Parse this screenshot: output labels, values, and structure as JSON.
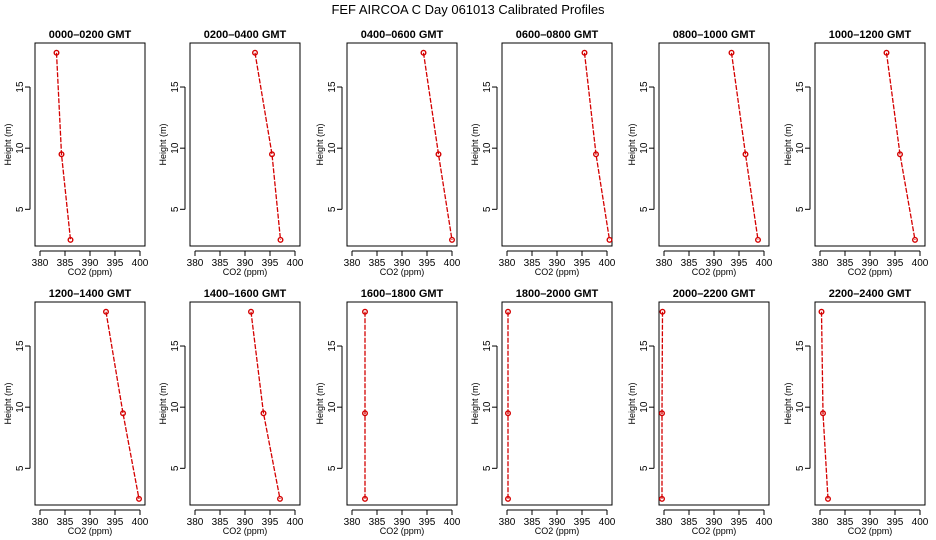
{
  "figure_title": "FEF AIRCOA C  Day 061013  Calibrated Profiles",
  "chart_data": [
    {
      "type": "line",
      "title": "0000–0200 GMT",
      "xlabel": "CO2 (ppm)",
      "ylabel": "Height (m)",
      "xlim": [
        379,
        401
      ],
      "ylim": [
        2,
        18.6
      ],
      "xticks": [
        380,
        385,
        390,
        395,
        400
      ],
      "yticks": [
        5,
        10,
        15
      ],
      "x": [
        383.3,
        384.3,
        386.1
      ],
      "y": [
        17.8,
        9.5,
        2.5
      ],
      "color": "#d40000",
      "grid": false
    },
    {
      "type": "line",
      "title": "0200–0400 GMT",
      "xlabel": "CO2 (ppm)",
      "ylabel": "Height (m)",
      "xlim": [
        379,
        401
      ],
      "ylim": [
        2,
        18.6
      ],
      "xticks": [
        380,
        385,
        390,
        395,
        400
      ],
      "yticks": [
        5,
        10,
        15
      ],
      "x": [
        392.0,
        395.4,
        397.1
      ],
      "y": [
        17.8,
        9.5,
        2.5
      ],
      "color": "#d40000",
      "grid": false
    },
    {
      "type": "line",
      "title": "0400–0600 GMT",
      "xlabel": "CO2 (ppm)",
      "ylabel": "Height (m)",
      "xlim": [
        379,
        401
      ],
      "ylim": [
        2,
        18.6
      ],
      "xticks": [
        380,
        385,
        390,
        395,
        400
      ],
      "yticks": [
        5,
        10,
        15
      ],
      "x": [
        394.3,
        397.3,
        400.0
      ],
      "y": [
        17.8,
        9.5,
        2.5
      ],
      "color": "#d40000",
      "grid": false
    },
    {
      "type": "line",
      "title": "0600–0800 GMT",
      "xlabel": "CO2 (ppm)",
      "ylabel": "Height (m)",
      "xlim": [
        379,
        401
      ],
      "ylim": [
        2,
        18.6
      ],
      "xticks": [
        380,
        385,
        390,
        395,
        400
      ],
      "yticks": [
        5,
        10,
        15
      ],
      "x": [
        395.5,
        397.8,
        400.5
      ],
      "y": [
        17.8,
        9.5,
        2.5
      ],
      "color": "#d40000",
      "grid": false
    },
    {
      "type": "line",
      "title": "0800–1000 GMT",
      "xlabel": "CO2 (ppm)",
      "ylabel": "Height (m)",
      "xlim": [
        379,
        401
      ],
      "ylim": [
        2,
        18.6
      ],
      "xticks": [
        380,
        385,
        390,
        395,
        400
      ],
      "yticks": [
        5,
        10,
        15
      ],
      "x": [
        393.5,
        396.3,
        398.8
      ],
      "y": [
        17.8,
        9.5,
        2.5
      ],
      "color": "#d40000",
      "grid": false
    },
    {
      "type": "line",
      "title": "1000–1200 GMT",
      "xlabel": "CO2 (ppm)",
      "ylabel": "Height (m)",
      "xlim": [
        379,
        401
      ],
      "ylim": [
        2,
        18.6
      ],
      "xticks": [
        380,
        385,
        390,
        395,
        400
      ],
      "yticks": [
        5,
        10,
        15
      ],
      "x": [
        393.3,
        396.0,
        399.0
      ],
      "y": [
        17.8,
        9.5,
        2.5
      ],
      "color": "#d40000",
      "grid": false
    },
    {
      "type": "line",
      "title": "1200–1400 GMT",
      "xlabel": "CO2 (ppm)",
      "ylabel": "Height (m)",
      "xlim": [
        379,
        401
      ],
      "ylim": [
        2,
        18.6
      ],
      "xticks": [
        380,
        385,
        390,
        395,
        400
      ],
      "yticks": [
        5,
        10,
        15
      ],
      "x": [
        393.2,
        396.6,
        399.8
      ],
      "y": [
        17.8,
        9.5,
        2.5
      ],
      "color": "#d40000",
      "grid": false
    },
    {
      "type": "line",
      "title": "1400–1600 GMT",
      "xlabel": "CO2 (ppm)",
      "ylabel": "Height (m)",
      "xlim": [
        379,
        401
      ],
      "ylim": [
        2,
        18.6
      ],
      "xticks": [
        380,
        385,
        390,
        395,
        400
      ],
      "yticks": [
        5,
        10,
        15
      ],
      "x": [
        391.2,
        393.7,
        397.0
      ],
      "y": [
        17.8,
        9.5,
        2.5
      ],
      "color": "#d40000",
      "grid": false
    },
    {
      "type": "line",
      "title": "1600–1800 GMT",
      "xlabel": "CO2 (ppm)",
      "ylabel": "Height (m)",
      "xlim": [
        379,
        401
      ],
      "ylim": [
        2,
        18.6
      ],
      "xticks": [
        380,
        385,
        390,
        395,
        400
      ],
      "yticks": [
        5,
        10,
        15
      ],
      "x": [
        382.6,
        382.6,
        382.6
      ],
      "y": [
        17.8,
        9.5,
        2.5
      ],
      "color": "#d40000",
      "grid": false
    },
    {
      "type": "line",
      "title": "1800–2000 GMT",
      "xlabel": "CO2 (ppm)",
      "ylabel": "Height (m)",
      "xlim": [
        379,
        401
      ],
      "ylim": [
        2,
        18.6
      ],
      "xticks": [
        380,
        385,
        390,
        395,
        400
      ],
      "yticks": [
        5,
        10,
        15
      ],
      "x": [
        380.2,
        380.2,
        380.2
      ],
      "y": [
        17.8,
        9.5,
        2.5
      ],
      "color": "#d40000",
      "grid": false
    },
    {
      "type": "line",
      "title": "2000–2200 GMT",
      "xlabel": "CO2 (ppm)",
      "ylabel": "Height (m)",
      "xlim": [
        379,
        401
      ],
      "ylim": [
        2,
        18.6
      ],
      "xticks": [
        380,
        385,
        390,
        395,
        400
      ],
      "yticks": [
        5,
        10,
        15
      ],
      "x": [
        379.7,
        379.6,
        379.6
      ],
      "y": [
        17.8,
        9.5,
        2.5
      ],
      "color": "#d40000",
      "grid": false
    },
    {
      "type": "line",
      "title": "2200–2400 GMT",
      "xlabel": "CO2 (ppm)",
      "ylabel": "Height (m)",
      "xlim": [
        379,
        401
      ],
      "ylim": [
        2,
        18.6
      ],
      "xticks": [
        380,
        385,
        390,
        395,
        400
      ],
      "yticks": [
        5,
        10,
        15
      ],
      "x": [
        380.3,
        380.6,
        381.6
      ],
      "y": [
        17.8,
        9.5,
        2.5
      ],
      "color": "#d40000",
      "grid": false
    }
  ]
}
